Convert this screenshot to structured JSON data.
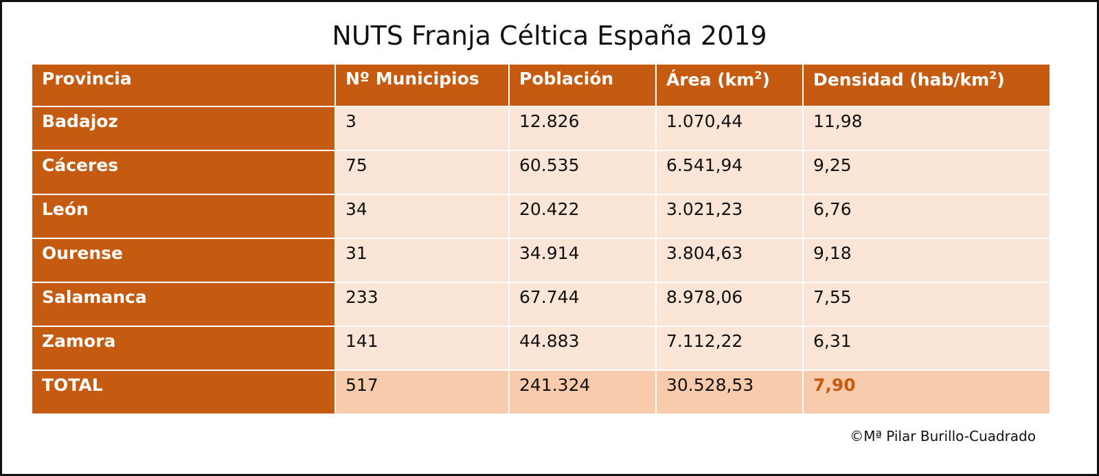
{
  "title": "NUTS Franja Céltica España 2019",
  "headers": {
    "provincia": "Provincia",
    "municipios": "Nº Municipios",
    "poblacion": "Población",
    "area_pre": "Área (km",
    "area_sup": "2",
    "area_post": ")",
    "densidad_pre": "Densidad (hab/km",
    "densidad_sup": "2",
    "densidad_post": ")"
  },
  "rows": [
    {
      "provincia": "Badajoz",
      "municipios": "3",
      "poblacion": "12.826",
      "area": "1.070,44",
      "densidad": "11,98"
    },
    {
      "provincia": "Cáceres",
      "municipios": "75",
      "poblacion": "60.535",
      "area": "6.541,94",
      "densidad": "9,25"
    },
    {
      "provincia": "León",
      "municipios": "34",
      "poblacion": "20.422",
      "area": "3.021,23",
      "densidad": "6,76"
    },
    {
      "provincia": "Ourense",
      "municipios": "31",
      "poblacion": "34.914",
      "area": "3.804,63",
      "densidad": "9,18"
    },
    {
      "provincia": "Salamanca",
      "municipios": "233",
      "poblacion": "67.744",
      "area": "8.978,06",
      "densidad": "7,55"
    },
    {
      "provincia": "Zamora",
      "municipios": "141",
      "poblacion": "44.883",
      "area": "7.112,22",
      "densidad": "6,31"
    }
  ],
  "total": {
    "provincia": "TOTAL",
    "municipios": "517",
    "poblacion": "241.324",
    "area": "30.528,53",
    "densidad": "7,90"
  },
  "credit": "©Mª Pilar Burillo-Cuadrado",
  "colors": {
    "header": "#c55a11",
    "row": "#fbe5d6",
    "total_row": "#f8cbad",
    "highlight": "#c55a11"
  }
}
